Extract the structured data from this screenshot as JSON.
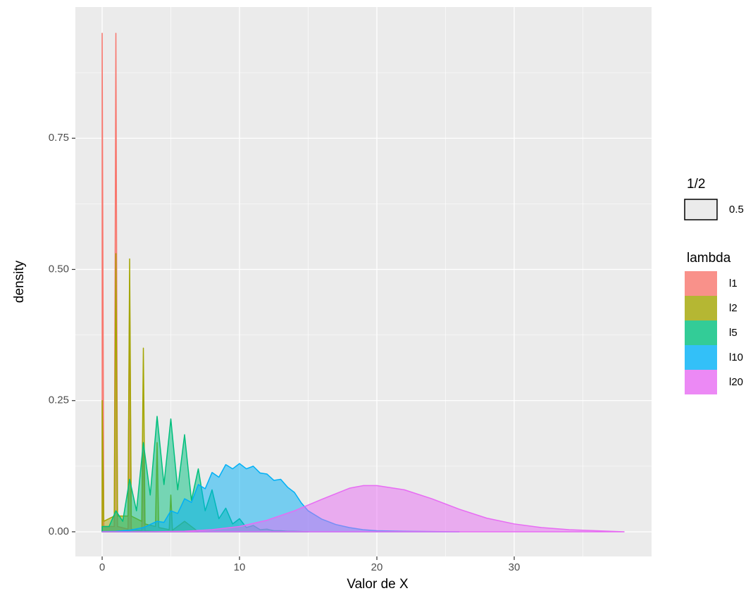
{
  "chart_data": {
    "type": "area",
    "x_label": "Valor de X",
    "y_label": "density",
    "xlim": [
      -1.95,
      40
    ],
    "xticks": [
      0,
      10,
      20,
      30
    ],
    "ylim": [
      -0.047,
      1.0
    ],
    "yticks": [
      {
        "value": 0,
        "label": "0.00"
      },
      {
        "value": 0.25,
        "label": "0.25"
      },
      {
        "value": 0.5,
        "label": "0.50"
      },
      {
        "value": 0.75,
        "label": "0.75"
      }
    ],
    "grid": true,
    "legend_position": "right",
    "alpha_legend_title": "1/2",
    "alpha": 0.5,
    "legend_title": "lambda",
    "series": [
      {
        "name": "l1",
        "color": "#F8766D",
        "x": [
          0,
          0.12,
          0.88,
          1,
          1.12,
          1.88,
          2,
          2.12,
          2.88,
          3,
          3.12,
          4
        ],
        "values": [
          0.95,
          0.01,
          0.01,
          0.95,
          0.01,
          0.005,
          0.47,
          0.005,
          0.002,
          0.16,
          0.002,
          0
        ]
      },
      {
        "name": "l2",
        "color": "#A3A500",
        "x": [
          0,
          0.12,
          0.88,
          1,
          1.12,
          1.88,
          2,
          2.12,
          2.88,
          3,
          3.12,
          3.88,
          4,
          4.12,
          4.88,
          5,
          5.12,
          6,
          7
        ],
        "values": [
          0.25,
          0.02,
          0.03,
          0.53,
          0.03,
          0.03,
          0.52,
          0.03,
          0.02,
          0.35,
          0.015,
          0.01,
          0.17,
          0.008,
          0.004,
          0.07,
          0.003,
          0.02,
          0
        ]
      },
      {
        "name": "l5",
        "color": "#00BF7D",
        "x": [
          0,
          0.5,
          1,
          1.5,
          2,
          2.5,
          3,
          3.5,
          4,
          4.5,
          5,
          5.5,
          6,
          6.5,
          7,
          7.5,
          8,
          8.5,
          9,
          9.5,
          10,
          10.5,
          11,
          11.5,
          12,
          12.5,
          13,
          13.5,
          14,
          14.5,
          15
        ],
        "values": [
          0.01,
          0.01,
          0.04,
          0.02,
          0.1,
          0.04,
          0.17,
          0.07,
          0.22,
          0.09,
          0.215,
          0.08,
          0.185,
          0.06,
          0.12,
          0.04,
          0.08,
          0.025,
          0.045,
          0.015,
          0.025,
          0.008,
          0.012,
          0.004,
          0.005,
          0.002,
          0.002,
          0.001,
          0.001,
          0.0005,
          0
        ]
      },
      {
        "name": "l10",
        "color": "#00B0F6",
        "x": [
          0,
          1,
          2,
          3,
          4,
          4.5,
          5,
          5.5,
          6,
          6.5,
          7,
          7.5,
          8,
          8.5,
          9,
          9.5,
          10,
          10.5,
          11,
          11.5,
          12,
          12.5,
          13,
          13.5,
          14,
          14.5,
          15,
          16,
          17,
          18,
          19,
          20,
          22,
          24,
          26
        ],
        "values": [
          0.0005,
          0.001,
          0.003,
          0.008,
          0.02,
          0.018,
          0.04,
          0.035,
          0.063,
          0.056,
          0.09,
          0.082,
          0.113,
          0.104,
          0.128,
          0.12,
          0.13,
          0.12,
          0.125,
          0.112,
          0.11,
          0.098,
          0.1,
          0.085,
          0.075,
          0.055,
          0.04,
          0.024,
          0.014,
          0.008,
          0.004,
          0.002,
          0.001,
          0.0005,
          0
        ]
      },
      {
        "name": "l20",
        "color": "#E76BF3",
        "x": [
          0,
          2,
          4,
          6,
          8,
          10,
          12,
          14,
          16,
          18,
          19,
          20,
          22,
          24,
          26,
          28,
          30,
          32,
          34,
          36,
          38
        ],
        "values": [
          0,
          0,
          0.0002,
          0.001,
          0.004,
          0.01,
          0.022,
          0.04,
          0.062,
          0.083,
          0.088,
          0.088,
          0.08,
          0.063,
          0.043,
          0.026,
          0.015,
          0.008,
          0.004,
          0.002,
          0
        ]
      }
    ]
  }
}
